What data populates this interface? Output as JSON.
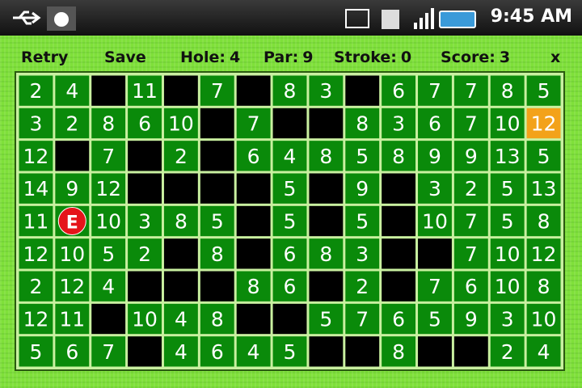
{
  "status_bar": {
    "time": "9:45 AM"
  },
  "toolbar": {
    "retry": "Retry",
    "save": "Save",
    "stats": [
      {
        "label": "Hole:",
        "value": 4
      },
      {
        "label": "Par:",
        "value": 9
      },
      {
        "label": "Stroke:",
        "value": 0
      },
      {
        "label": "Score:",
        "value": 3
      }
    ],
    "close": "x"
  },
  "grid": {
    "highlight": {
      "row": 1,
      "col": 14
    },
    "rows": [
      [
        2,
        4,
        null,
        11,
        null,
        7,
        null,
        8,
        3,
        null,
        6,
        7,
        7,
        8,
        5
      ],
      [
        3,
        2,
        8,
        6,
        10,
        null,
        7,
        null,
        null,
        8,
        3,
        6,
        7,
        10,
        12
      ],
      [
        12,
        null,
        7,
        null,
        2,
        null,
        6,
        4,
        8,
        5,
        8,
        9,
        9,
        13,
        5
      ],
      [
        14,
        9,
        12,
        null,
        null,
        null,
        null,
        5,
        null,
        9,
        null,
        3,
        2,
        5,
        13
      ],
      [
        11,
        "E",
        10,
        3,
        8,
        5,
        null,
        5,
        null,
        5,
        null,
        10,
        7,
        5,
        8
      ],
      [
        12,
        10,
        5,
        2,
        null,
        8,
        null,
        6,
        8,
        3,
        null,
        null,
        7,
        10,
        12
      ],
      [
        2,
        12,
        4,
        null,
        null,
        null,
        8,
        6,
        null,
        2,
        null,
        7,
        6,
        10,
        8
      ],
      [
        12,
        11,
        null,
        10,
        4,
        8,
        null,
        null,
        5,
        7,
        6,
        5,
        9,
        3,
        10
      ],
      [
        5,
        6,
        7,
        null,
        4,
        6,
        4,
        5,
        null,
        null,
        8,
        null,
        null,
        2,
        4
      ]
    ]
  }
}
